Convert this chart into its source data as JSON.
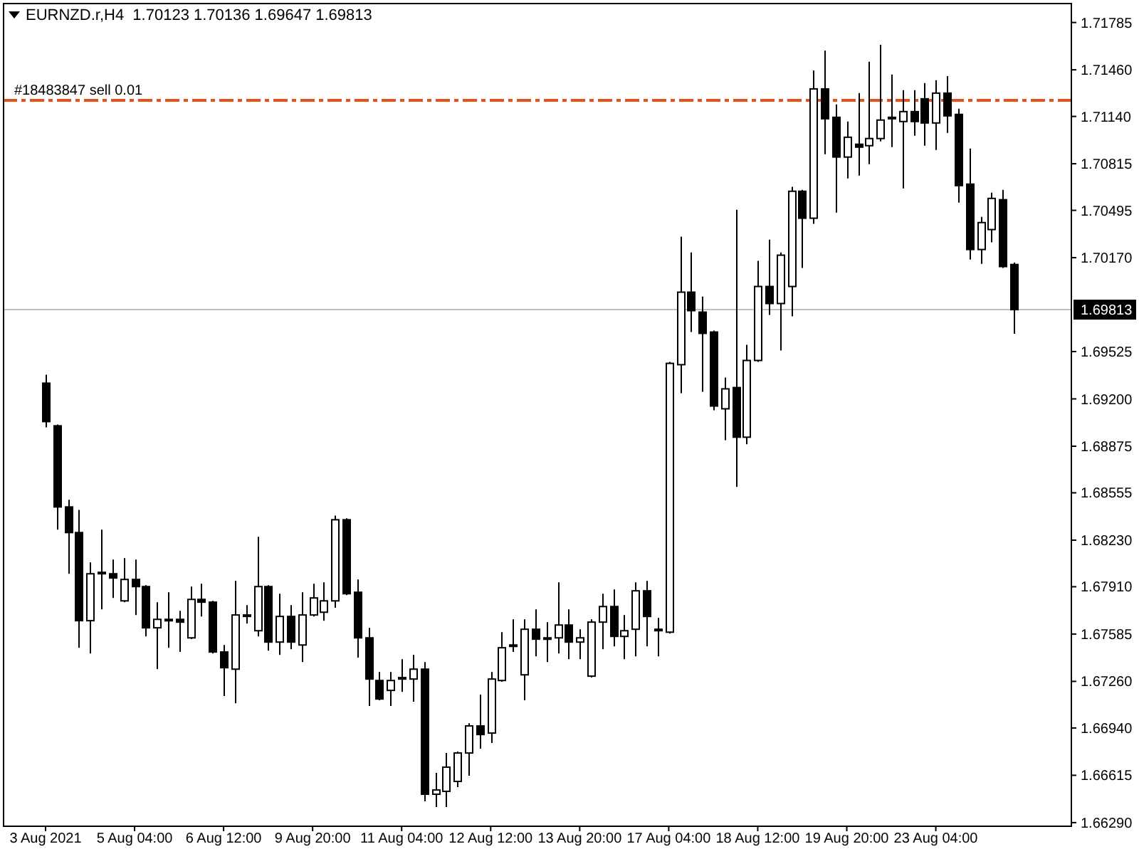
{
  "chart_data": {
    "type": "candlestick",
    "title": "EURNZD.r,H4  1.70123 1.70136 1.69647 1.69813",
    "categories": [
      "3 Aug 2021",
      null,
      null,
      null,
      null,
      null,
      null,
      null,
      "5 Aug 04:00",
      null,
      null,
      null,
      null,
      null,
      null,
      null,
      "6 Aug 12:00",
      null,
      null,
      null,
      null,
      null,
      null,
      null,
      "9 Aug 20:00",
      null,
      null,
      null,
      null,
      null,
      null,
      null,
      "11 Aug 04:00",
      null,
      null,
      null,
      null,
      null,
      null,
      null,
      "12 Aug 12:00",
      null,
      null,
      null,
      null,
      null,
      null,
      null,
      "13 Aug 20:00",
      null,
      null,
      null,
      null,
      null,
      null,
      null,
      "17 Aug 04:00",
      null,
      null,
      null,
      null,
      null,
      null,
      null,
      "18 Aug 12:00",
      null,
      null,
      null,
      null,
      null,
      null,
      null,
      "19 Aug 20:00",
      null,
      null,
      null,
      null,
      null,
      null,
      null,
      "23 Aug 04:00",
      null,
      null,
      null,
      null,
      null,
      null,
      null
    ],
    "ohlc": [
      [
        1.69308,
        1.69366,
        1.69005,
        1.69044
      ],
      [
        1.69015,
        1.69024,
        1.68302,
        1.68458
      ],
      [
        1.68458,
        1.68507,
        1.67999,
        1.68282
      ],
      [
        1.68282,
        1.68438,
        1.67491,
        1.67677
      ],
      [
        1.67677,
        1.68077,
        1.67452,
        1.67999
      ],
      [
        1.68009,
        1.68302,
        1.67755,
        1.67999
      ],
      [
        1.67999,
        1.68097,
        1.67833,
        1.6797
      ],
      [
        1.67813,
        1.68106,
        1.67804,
        1.6796
      ],
      [
        1.6796,
        1.68097,
        1.67716,
        1.67911
      ],
      [
        1.67911,
        1.67921,
        1.67569,
        1.67628
      ],
      [
        1.67628,
        1.67804,
        1.67344,
        1.67686
      ],
      [
        1.67686,
        1.67872,
        1.67491,
        1.67677
      ],
      [
        1.67686,
        1.67745,
        1.67462,
        1.67667
      ],
      [
        1.67559,
        1.67911,
        1.6755,
        1.67823
      ],
      [
        1.67823,
        1.67931,
        1.67706,
        1.67804
      ],
      [
        1.67804,
        1.67813,
        1.67452,
        1.67462
      ],
      [
        1.67462,
        1.6751,
        1.67159,
        1.67354
      ],
      [
        1.67344,
        1.6795,
        1.6711,
        1.67716
      ],
      [
        1.67716,
        1.67784,
        1.67657,
        1.67716
      ],
      [
        1.67608,
        1.68253,
        1.67569,
        1.67911
      ],
      [
        1.67911,
        1.67921,
        1.67471,
        1.6753
      ],
      [
        1.6753,
        1.67862,
        1.67442,
        1.67706
      ],
      [
        1.67706,
        1.67784,
        1.67481,
        1.6753
      ],
      [
        1.6751,
        1.67872,
        1.67393,
        1.67716
      ],
      [
        1.67716,
        1.67931,
        1.67706,
        1.67833
      ],
      [
        1.67735,
        1.6794,
        1.67677,
        1.67813
      ],
      [
        1.67813,
        1.68399,
        1.67765,
        1.6837
      ],
      [
        1.6837,
        1.6838,
        1.67852,
        1.67862
      ],
      [
        1.67872,
        1.6796,
        1.67423,
        1.67559
      ],
      [
        1.67559,
        1.67628,
        1.67091,
        1.67276
      ],
      [
        1.67266,
        1.67325,
        1.6713,
        1.67139
      ],
      [
        1.67198,
        1.67325,
        1.67091,
        1.67266
      ],
      [
        1.67276,
        1.67413,
        1.67188,
        1.67286
      ],
      [
        1.67276,
        1.67442,
        1.6712,
        1.67344
      ],
      [
        1.67344,
        1.67393,
        1.66436,
        1.66485
      ],
      [
        1.66485,
        1.66632,
        1.66397,
        1.66514
      ],
      [
        1.66505,
        1.66768,
        1.66397,
        1.66671
      ],
      [
        1.66573,
        1.66778,
        1.66534,
        1.66768
      ],
      [
        1.66768,
        1.66973,
        1.66612,
        1.66954
      ],
      [
        1.66954,
        1.67169,
        1.66798,
        1.66895
      ],
      [
        1.66905,
        1.67325,
        1.66837,
        1.67276
      ],
      [
        1.67266,
        1.67598,
        1.67257,
        1.67491
      ],
      [
        1.67501,
        1.67686,
        1.67462,
        1.6751
      ],
      [
        1.67305,
        1.67686,
        1.6713,
        1.67618
      ],
      [
        1.67618,
        1.67755,
        1.67432,
        1.6755
      ],
      [
        1.67559,
        1.67667,
        1.67393,
        1.67559
      ],
      [
        1.67559,
        1.6794,
        1.67452,
        1.67647
      ],
      [
        1.67647,
        1.67755,
        1.67413,
        1.6753
      ],
      [
        1.6753,
        1.67618,
        1.67413,
        1.67559
      ],
      [
        1.67296,
        1.67686,
        1.67286,
        1.67667
      ],
      [
        1.67667,
        1.67862,
        1.67481,
        1.67774
      ],
      [
        1.67774,
        1.67892,
        1.67501,
        1.67569
      ],
      [
        1.67569,
        1.67716,
        1.67413,
        1.67608
      ],
      [
        1.67618,
        1.6794,
        1.67432,
        1.67882
      ],
      [
        1.67882,
        1.6795,
        1.67501,
        1.67706
      ],
      [
        1.67618,
        1.67696,
        1.67432,
        1.67608
      ],
      [
        1.67598,
        1.69454,
        1.67589,
        1.69444
      ],
      [
        1.69435,
        1.70314,
        1.69239,
        1.69933
      ],
      [
        1.69933,
        1.70206,
        1.69659,
        1.69806
      ],
      [
        1.69796,
        1.69903,
        1.69249,
        1.6965
      ],
      [
        1.69659,
        1.69669,
        1.69122,
        1.69151
      ],
      [
        1.69132,
        1.69347,
        1.68917,
        1.69269
      ],
      [
        1.69278,
        1.70499,
        1.68595,
        1.68937
      ],
      [
        1.68937,
        1.69571,
        1.68888,
        1.69464
      ],
      [
        1.69464,
        1.70148,
        1.69454,
        1.69972
      ],
      [
        1.69972,
        1.70294,
        1.69777,
        1.69855
      ],
      [
        1.69855,
        1.70206,
        1.69532,
        1.70187
      ],
      [
        1.69972,
        1.70656,
        1.69767,
        1.70626
      ],
      [
        1.70626,
        1.70636,
        1.70099,
        1.70441
      ],
      [
        1.70441,
        1.71456,
        1.70402,
        1.71329
      ],
      [
        1.71329,
        1.71593,
        1.7088,
        1.71124
      ],
      [
        1.71134,
        1.71222,
        1.7048,
        1.70861
      ],
      [
        1.70861,
        1.71105,
        1.70714,
        1.70997
      ],
      [
        1.70949,
        1.713,
        1.70734,
        1.70929
      ],
      [
        1.70939,
        1.71515,
        1.70812,
        1.70988
      ],
      [
        1.70988,
        1.71632,
        1.70968,
        1.71115
      ],
      [
        1.71134,
        1.71427,
        1.70929,
        1.71124
      ],
      [
        1.71105,
        1.7132,
        1.70646,
        1.71173
      ],
      [
        1.71173,
        1.7132,
        1.71007,
        1.71105
      ],
      [
        1.71261,
        1.71369,
        1.70939,
        1.71095
      ],
      [
        1.71095,
        1.71388,
        1.70909,
        1.713
      ],
      [
        1.713,
        1.71417,
        1.71027,
        1.71144
      ],
      [
        1.71154,
        1.71193,
        1.70548,
        1.70665
      ],
      [
        1.70675,
        1.70919,
        1.70157,
        1.70226
      ],
      [
        1.70226,
        1.7045,
        1.70128,
        1.70411
      ],
      [
        1.70363,
        1.70616,
        1.70275,
        1.70577
      ],
      [
        1.70568,
        1.70636,
        1.70099,
        1.70109
      ],
      [
        1.70123,
        1.70136,
        1.69647,
        1.69813
      ]
    ],
    "ylim": [
      1.6627,
      1.7192
    ],
    "yticks": [
      {
        "value": 1.6629,
        "label": "1.66290"
      },
      1.66615,
      {
        "value": 1.6694,
        "label": "1.66940"
      },
      {
        "value": 1.6726,
        "label": "1.67260"
      },
      1.67585,
      {
        "value": 1.6791,
        "label": "1.67910"
      },
      {
        "value": 1.6823,
        "label": "1.68230"
      },
      1.68555,
      1.68875,
      {
        "value": 1.692,
        "label": "1.69200"
      },
      1.69525,
      {
        "value": 1.7017,
        "label": "1.70170"
      },
      1.70495,
      1.70815,
      {
        "value": 1.7114,
        "label": "1.71140"
      },
      {
        "value": 1.7146,
        "label": "1.71460"
      },
      1.71785
    ],
    "ref_lines": [
      {
        "axis": "y",
        "value": 1.71251,
        "label": "#18483847 sell 0.01",
        "color": "#e8501a",
        "line_style": "dashed"
      },
      {
        "axis": "y",
        "value": 1.69813,
        "label": "1.69813",
        "color": "#c0c0c0",
        "line_style": "solid"
      }
    ],
    "grid": false
  }
}
